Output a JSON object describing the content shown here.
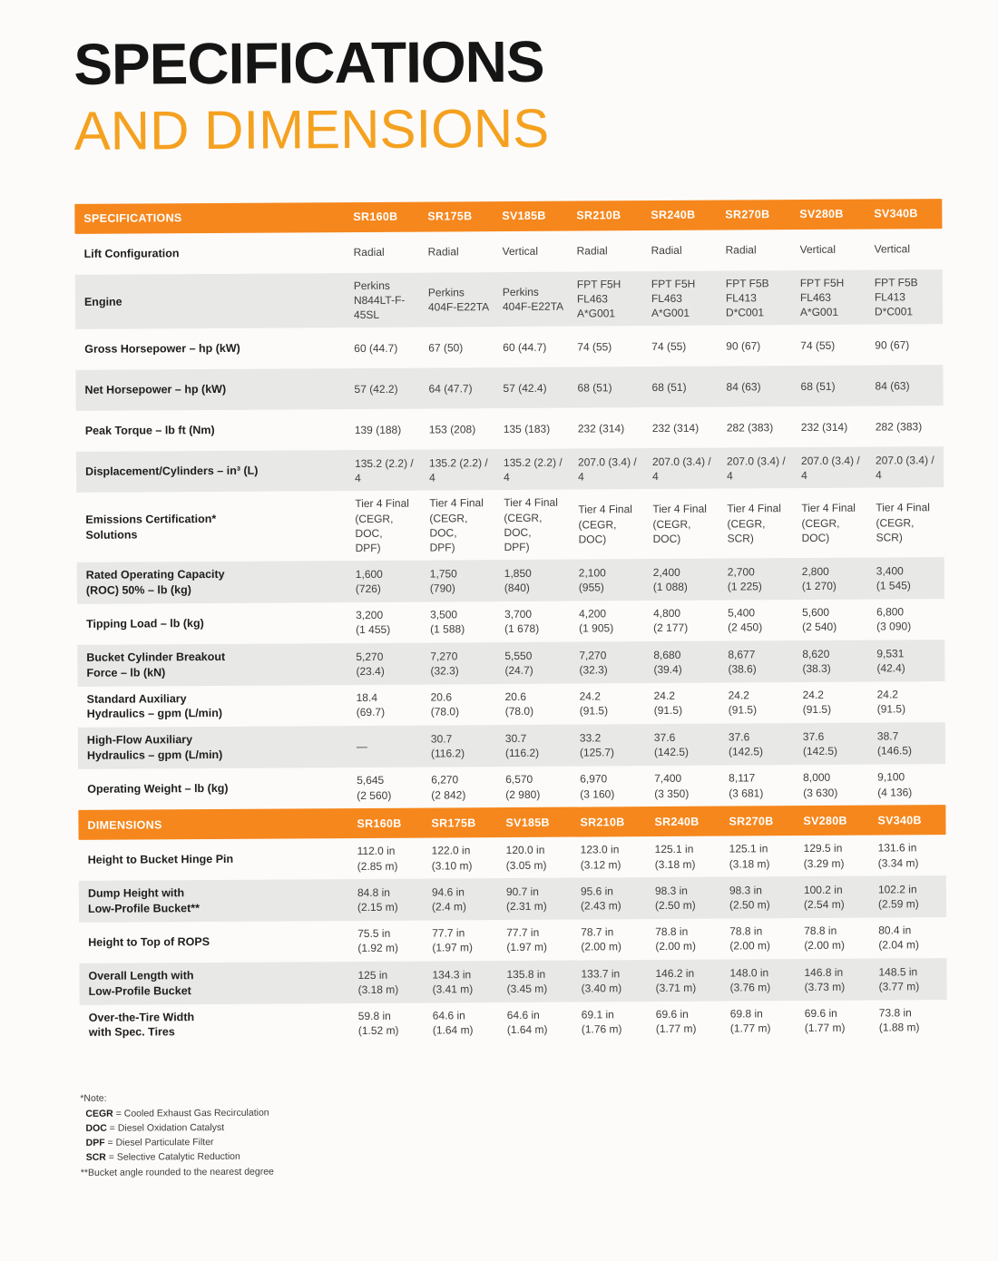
{
  "page": {
    "title_line1": "SPECIFICATIONS",
    "title_line2": "AND DIMENSIONS"
  },
  "colors": {
    "header_orange": "#f6871d",
    "title_orange": "#f5a120",
    "row_alt_gray": "#e8e8e6"
  },
  "models": [
    "SR160B",
    "SR175B",
    "SV185B",
    "SR210B",
    "SR240B",
    "SR270B",
    "SV280B",
    "SV340B"
  ],
  "specifications": {
    "header": "SPECIFICATIONS",
    "rows": [
      {
        "label": "Lift Configuration",
        "values": [
          "Radial",
          "Radial",
          "Vertical",
          "Radial",
          "Radial",
          "Radial",
          "Vertical",
          "Vertical"
        ]
      },
      {
        "label": "Engine",
        "values": [
          "Perkins\nN844LT-F-\n45SL",
          "Perkins\n404F-E22TA",
          "Perkins\n404F-E22TA",
          "FPT F5H\nFL463\nA*G001",
          "FPT F5H\nFL463\nA*G001",
          "FPT F5B\nFL413\nD*C001",
          "FPT F5H\nFL463\nA*G001",
          "FPT F5B\nFL413\nD*C001"
        ]
      },
      {
        "label": "Gross Horsepower – hp (kW)",
        "values": [
          "60 (44.7)",
          "67 (50)",
          "60 (44.7)",
          "74 (55)",
          "74 (55)",
          "90 (67)",
          "74 (55)",
          "90 (67)"
        ]
      },
      {
        "label": "Net Horsepower – hp (kW)",
        "values": [
          "57 (42.2)",
          "64 (47.7)",
          "57 (42.4)",
          "68 (51)",
          "68 (51)",
          "84 (63)",
          "68 (51)",
          "84 (63)"
        ]
      },
      {
        "label": "Peak Torque – lb ft (Nm)",
        "values": [
          "139 (188)",
          "153 (208)",
          "135 (183)",
          "232 (314)",
          "232 (314)",
          "282 (383)",
          "232 (314)",
          "282 (383)"
        ]
      },
      {
        "label": "Displacement/Cylinders – in³ (L)",
        "values": [
          "135.2 (2.2) / 4",
          "135.2 (2.2) / 4",
          "135.2 (2.2) / 4",
          "207.0 (3.4) / 4",
          "207.0 (3.4) / 4",
          "207.0 (3.4) / 4",
          "207.0 (3.4) / 4",
          "207.0 (3.4) / 4"
        ]
      },
      {
        "label": "Emissions Certification*\nSolutions",
        "values": [
          "Tier 4 Final\n(CEGR, DOC,\nDPF)",
          "Tier 4 Final\n(CEGR, DOC,\nDPF)",
          "Tier 4 Final\n(CEGR, DOC,\nDPF)",
          "Tier 4 Final\n(CEGR, DOC)",
          "Tier 4 Final\n(CEGR, DOC)",
          "Tier 4 Final\n(CEGR, SCR)",
          "Tier 4 Final\n(CEGR, DOC)",
          "Tier 4 Final\n(CEGR, SCR)"
        ]
      },
      {
        "label": "Rated Operating Capacity\n(ROC) 50% – lb (kg)",
        "values": [
          "1,600\n(726)",
          "1,750\n(790)",
          "1,850\n(840)",
          "2,100\n(955)",
          "2,400\n(1 088)",
          "2,700\n(1 225)",
          "2,800\n(1 270)",
          "3,400\n(1 545)"
        ]
      },
      {
        "label": "Tipping Load – lb (kg)",
        "values": [
          "3,200\n(1 455)",
          "3,500\n(1 588)",
          "3,700\n(1 678)",
          "4,200\n(1 905)",
          "4,800\n(2 177)",
          "5,400\n(2 450)",
          "5,600\n(2 540)",
          "6,800\n(3 090)"
        ]
      },
      {
        "label": "Bucket Cylinder Breakout\nForce – lb (kN)",
        "values": [
          "5,270\n(23.4)",
          "7,270\n(32.3)",
          "5,550\n(24.7)",
          "7,270\n(32.3)",
          "8,680\n(39.4)",
          "8,677\n(38.6)",
          "8,620\n(38.3)",
          "9,531\n(42.4)"
        ]
      },
      {
        "label": "Standard Auxiliary\nHydraulics – gpm (L/min)",
        "values": [
          "18.4\n(69.7)",
          "20.6\n(78.0)",
          "20.6\n(78.0)",
          "24.2\n(91.5)",
          "24.2\n(91.5)",
          "24.2\n(91.5)",
          "24.2\n(91.5)",
          "24.2\n(91.5)"
        ]
      },
      {
        "label": "High-Flow Auxiliary\nHydraulics – gpm (L/min)",
        "values": [
          "—",
          "30.7\n(116.2)",
          "30.7\n(116.2)",
          "33.2\n(125.7)",
          "37.6\n(142.5)",
          "37.6\n(142.5)",
          "37.6\n(142.5)",
          "38.7\n(146.5)"
        ]
      },
      {
        "label": "Operating Weight – lb (kg)",
        "values": [
          "5,645\n(2 560)",
          "6,270\n(2 842)",
          "6,570\n(2 980)",
          "6,970\n(3 160)",
          "7,400\n(3 350)",
          "8,117\n(3 681)",
          "8,000\n(3 630)",
          "9,100\n(4 136)"
        ]
      }
    ]
  },
  "dimensions": {
    "header": "DIMENSIONS",
    "rows": [
      {
        "label": "Height to Bucket Hinge Pin",
        "values": [
          "112.0 in\n(2.85 m)",
          "122.0 in\n(3.10 m)",
          "120.0 in\n(3.05 m)",
          "123.0 in\n(3.12 m)",
          "125.1 in\n(3.18 m)",
          "125.1 in\n(3.18 m)",
          "129.5 in\n(3.29 m)",
          "131.6 in\n(3.34 m)"
        ]
      },
      {
        "label": "Dump Height with\nLow-Profile Bucket**",
        "values": [
          "84.8 in\n(2.15 m)",
          "94.6 in\n(2.4 m)",
          "90.7 in\n(2.31 m)",
          "95.6 in\n(2.43 m)",
          "98.3 in\n(2.50 m)",
          "98.3 in\n(2.50 m)",
          "100.2 in\n(2.54 m)",
          "102.2 in\n(2.59 m)"
        ]
      },
      {
        "label": "Height to Top of ROPS",
        "values": [
          "75.5 in\n(1.92 m)",
          "77.7 in\n(1.97 m)",
          "77.7 in\n(1.97 m)",
          "78.7 in\n(2.00 m)",
          "78.8 in\n(2.00 m)",
          "78.8 in\n(2.00 m)",
          "78.8 in\n(2.00 m)",
          "80.4 in\n(2.04 m)"
        ]
      },
      {
        "label": "Overall Length with\nLow-Profile Bucket",
        "values": [
          "125 in\n(3.18 m)",
          "134.3 in\n(3.41 m)",
          "135.8 in\n(3.45 m)",
          "133.7 in\n(3.40 m)",
          "146.2 in\n(3.71 m)",
          "148.0 in\n(3.76 m)",
          "146.8 in\n(3.73 m)",
          "148.5 in\n(3.77 m)"
        ]
      },
      {
        "label": "Over-the-Tire Width\nwith Spec. Tires",
        "values": [
          "59.8 in\n(1.52 m)",
          "64.6 in\n(1.64 m)",
          "64.6 in\n(1.64 m)",
          "69.1 in\n(1.76 m)",
          "69.6 in\n(1.77 m)",
          "69.8 in\n(1.77 m)",
          "69.6 in\n(1.77 m)",
          "73.8 in\n(1.88 m)"
        ]
      }
    ]
  },
  "footnotes": {
    "note_label": "*Note:",
    "defs": [
      {
        "term": "CEGR",
        "text": " = Cooled Exhaust Gas Recirculation"
      },
      {
        "term": "DOC",
        "text": " = Diesel Oxidation Catalyst"
      },
      {
        "term": "DPF",
        "text": " = Diesel Particulate Filter"
      },
      {
        "term": "SCR",
        "text": " = Selective Catalytic Reduction"
      }
    ],
    "bucket_note": "**Bucket angle rounded to the nearest degree"
  }
}
